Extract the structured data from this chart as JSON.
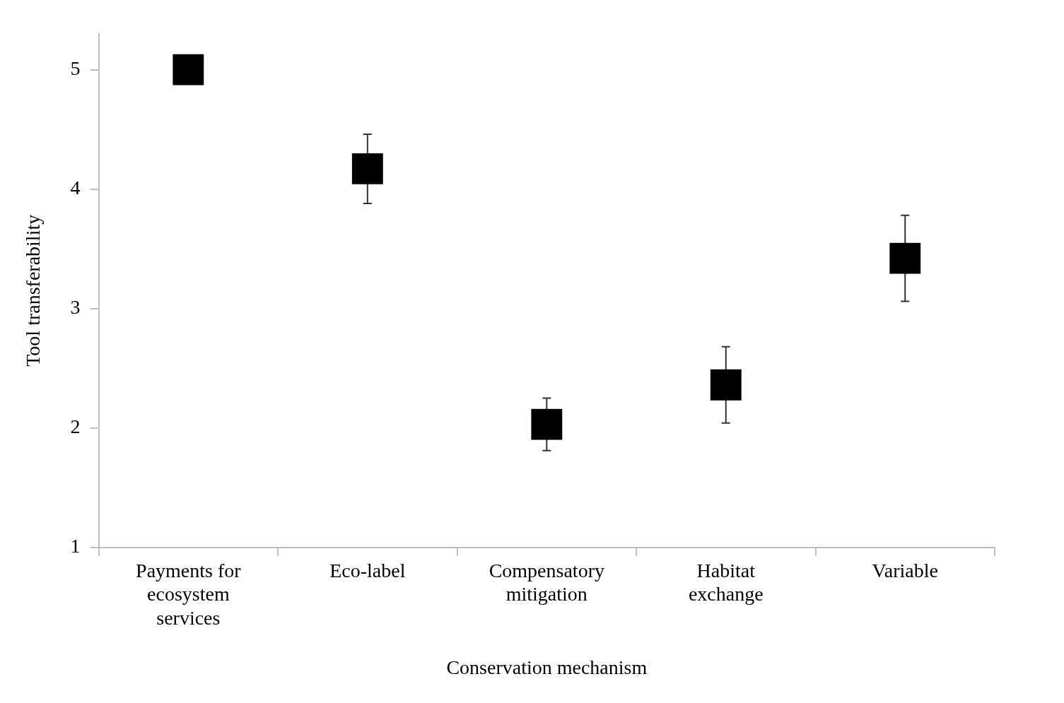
{
  "chart_data": {
    "type": "scatter",
    "xlabel": "Conservation mechanism",
    "ylabel": "Tool transferability",
    "categories": [
      "Payments for ecosystem services",
      "Eco-label",
      "Compensatory mitigation",
      "Habitat exchange",
      "Variable"
    ],
    "series": [
      {
        "color": "#000000",
        "values": [
          5,
          4.17,
          2.03,
          2.36,
          3.42
        ],
        "errors": [
          null,
          0.29,
          0.22,
          0.32,
          0.36
        ]
      }
    ],
    "ylim": [
      1,
      5.3
    ],
    "yticks": [
      1,
      2,
      3,
      4,
      5
    ],
    "grid": false,
    "legend": false,
    "marker": "square"
  }
}
